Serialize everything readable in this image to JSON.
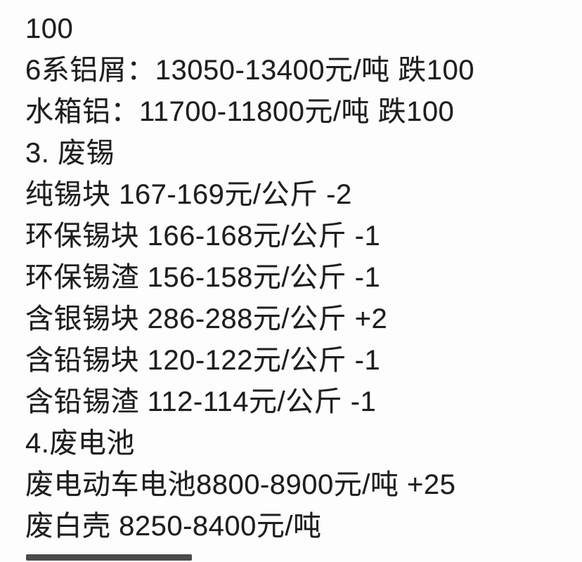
{
  "page": {
    "background_color": "#fdfdfd",
    "text_color": "#1e1e1e"
  },
  "lines": [
    {
      "text": "100"
    },
    {
      "text": "6系铝屑：13050-13400元/吨 跌100"
    },
    {
      "text": "水箱铝：11700-11800元/吨 跌100"
    },
    {
      "text": "3. 废锡"
    },
    {
      "text": "纯锡块 167-169元/公斤 -2"
    },
    {
      "text": "环保锡块 166-168元/公斤 -1"
    },
    {
      "text": "环保锡渣 156-158元/公斤 -1"
    },
    {
      "text": "含银锡块 286-288元/公斤 +2"
    },
    {
      "text": "含铅锡块 120-122元/公斤 -1"
    },
    {
      "text": "含铅锡渣 112-114元/公斤 -1"
    },
    {
      "text": "4.废电池"
    },
    {
      "text": "废电动车电池8800-8900元/吨 +25"
    },
    {
      "text": "废白壳 8250-8400元/吨"
    }
  ]
}
